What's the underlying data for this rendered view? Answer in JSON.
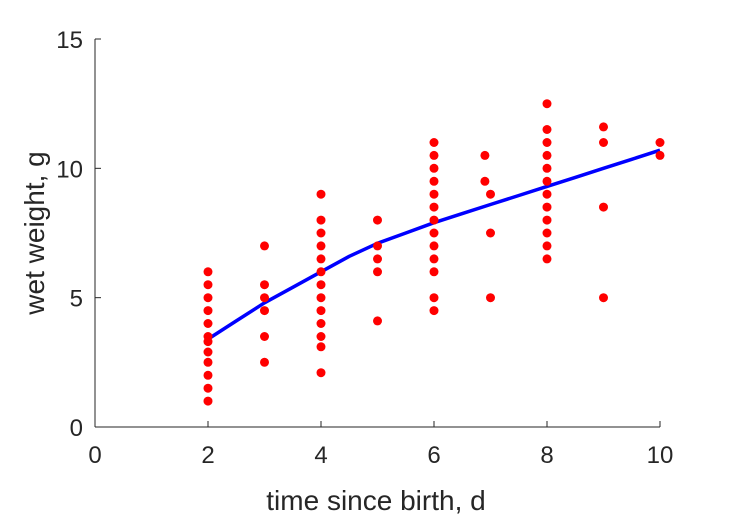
{
  "chart_data": {
    "type": "scatter",
    "xlabel": "time since birth, d",
    "ylabel": "wet weight, g",
    "xlim": [
      0,
      10
    ],
    "ylim": [
      0,
      15
    ],
    "xticks": [
      0,
      2,
      4,
      6,
      8,
      10
    ],
    "yticks": [
      0,
      5,
      10,
      15
    ],
    "grid": false,
    "colors": {
      "points": "#ff0000",
      "line": "#0000ff",
      "axis": "#262626"
    },
    "series": [
      {
        "type": "scatter",
        "points": [
          [
            2,
            6.0
          ],
          [
            2,
            5.5
          ],
          [
            2,
            5.0
          ],
          [
            2,
            4.5
          ],
          [
            2,
            4.0
          ],
          [
            2,
            3.5
          ],
          [
            2,
            3.3
          ],
          [
            2,
            2.9
          ],
          [
            2,
            2.5
          ],
          [
            2,
            2.0
          ],
          [
            2,
            1.5
          ],
          [
            2,
            1.0
          ],
          [
            3,
            7.0
          ],
          [
            3,
            5.5
          ],
          [
            3,
            5.0
          ],
          [
            3,
            4.5
          ],
          [
            3,
            3.5
          ],
          [
            3,
            2.5
          ],
          [
            4,
            9.0
          ],
          [
            4,
            8.0
          ],
          [
            4,
            7.5
          ],
          [
            4,
            7.0
          ],
          [
            4,
            6.5
          ],
          [
            4,
            6.0
          ],
          [
            4,
            5.5
          ],
          [
            4,
            5.0
          ],
          [
            4,
            4.5
          ],
          [
            4,
            4.0
          ],
          [
            4,
            3.5
          ],
          [
            4,
            3.1
          ],
          [
            4,
            2.1
          ],
          [
            5,
            8.0
          ],
          [
            5,
            7.0
          ],
          [
            5,
            6.5
          ],
          [
            5,
            6.0
          ],
          [
            5,
            4.1
          ],
          [
            6,
            11.0
          ],
          [
            6,
            10.5
          ],
          [
            6,
            10.0
          ],
          [
            6,
            9.5
          ],
          [
            6,
            9.0
          ],
          [
            6,
            8.5
          ],
          [
            6,
            8.0
          ],
          [
            6,
            7.5
          ],
          [
            6,
            7.0
          ],
          [
            6,
            6.5
          ],
          [
            6,
            6.0
          ],
          [
            6,
            5.0
          ],
          [
            6,
            4.5
          ],
          [
            6.9,
            10.5
          ],
          [
            6.9,
            9.5
          ],
          [
            7,
            9.0
          ],
          [
            7,
            7.5
          ],
          [
            7,
            5.0
          ],
          [
            8,
            12.5
          ],
          [
            8,
            11.5
          ],
          [
            8,
            11.0
          ],
          [
            8,
            10.5
          ],
          [
            8,
            10.0
          ],
          [
            8,
            9.5
          ],
          [
            8,
            9.0
          ],
          [
            8,
            8.5
          ],
          [
            8,
            8.0
          ],
          [
            8,
            7.5
          ],
          [
            8,
            7.0
          ],
          [
            8,
            6.5
          ],
          [
            9,
            11.6
          ],
          [
            9,
            11.0
          ],
          [
            9,
            8.5
          ],
          [
            9,
            5.0
          ],
          [
            10,
            11.0
          ],
          [
            10,
            10.5
          ]
        ]
      },
      {
        "type": "line",
        "points": [
          [
            2,
            3.4
          ],
          [
            2.5,
            4.1
          ],
          [
            3,
            4.8
          ],
          [
            3.5,
            5.4
          ],
          [
            4,
            6.0
          ],
          [
            4.5,
            6.6
          ],
          [
            5,
            7.1
          ],
          [
            5.5,
            7.5
          ],
          [
            6,
            7.9
          ],
          [
            6.5,
            8.25
          ],
          [
            7,
            8.6
          ],
          [
            7.5,
            8.95
          ],
          [
            8,
            9.3
          ],
          [
            8.5,
            9.65
          ],
          [
            9,
            10.0
          ],
          [
            9.5,
            10.35
          ],
          [
            10,
            10.7
          ]
        ]
      }
    ]
  }
}
